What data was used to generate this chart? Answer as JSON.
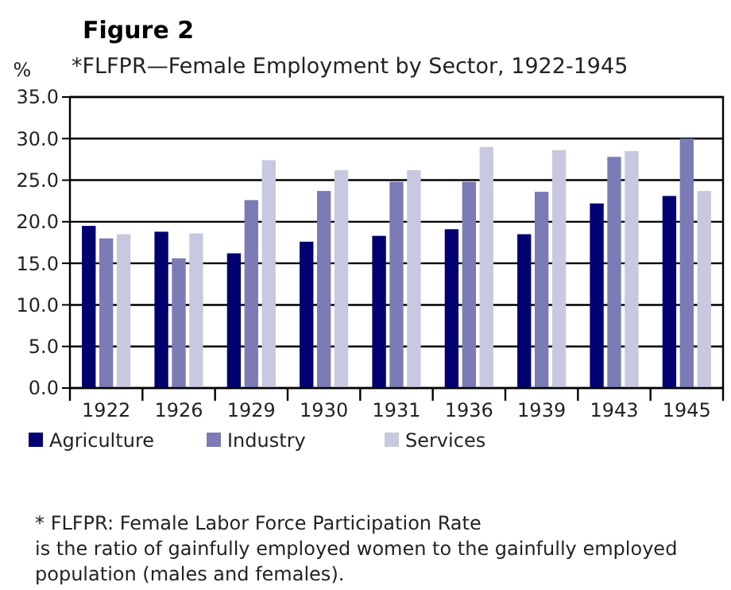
{
  "chart_data": {
    "type": "bar",
    "title": "Figure 2",
    "subtitle": "*FLFPR—Female Employment by Sector, 1922-1945",
    "ylabel": "%",
    "categories": [
      "1922",
      "1926",
      "1929",
      "1930",
      "1931",
      "1936",
      "1939",
      "1943",
      "1945"
    ],
    "series": [
      {
        "name": "Agriculture",
        "color": "#000070",
        "values": [
          19.5,
          18.8,
          16.2,
          17.6,
          18.3,
          19.1,
          18.5,
          22.2,
          23.1
        ]
      },
      {
        "name": "Industry",
        "color": "#7b7bb5",
        "values": [
          18.0,
          15.6,
          22.6,
          23.7,
          24.8,
          24.8,
          23.6,
          27.8,
          30.0
        ]
      },
      {
        "name": "Services",
        "color": "#c8c8e0",
        "values": [
          18.5,
          18.6,
          27.4,
          26.2,
          26.2,
          29.0,
          28.6,
          28.5,
          23.7
        ]
      }
    ],
    "ylim": [
      0,
      35
    ],
    "yticks": [
      {
        "value": 0,
        "label": "0.0"
      },
      {
        "value": 5,
        "label": "5.0"
      },
      {
        "value": 10,
        "label": "10.0"
      },
      {
        "value": 15,
        "label": "15.0"
      },
      {
        "value": 20,
        "label": "20.0"
      },
      {
        "value": 25,
        "label": "25.0"
      },
      {
        "value": 30,
        "label": "30.0"
      },
      {
        "value": 35,
        "label": "35.0"
      }
    ],
    "grid": "y",
    "legend": "bottom",
    "annotations": [
      "* FLFPR: Female Labor Force Participation Rate",
      "is the ratio of gainfully employed women to the gainfully employed",
      "population (males and females)."
    ]
  }
}
